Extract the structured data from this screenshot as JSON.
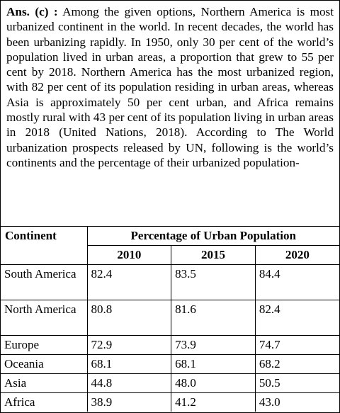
{
  "answer": {
    "label": "Ans. (c) :",
    "text": "Among the given options, Northern America is most urbanized continent in the world. In recent decades, the world has been urbanizing rapidly. In 1950, only 30 per cent of the world’s population lived in urban areas, a proportion that grew to 55 per cent by 2018. Northern America has the most urbanized region, with 82 per cent of its population residing in urban areas, whereas Asia is approximately 50 per cent urban, and Africa remains mostly rural with 43 per cent of its population living in urban areas in 2018 (United Nations, 2018). According to The World urbanization prospects released by UN, following is the world’s continents and the percentage of their urbanized population-"
  },
  "table": {
    "header": [
      "Continent",
      "Percentage of Urban Population"
    ],
    "years": [
      "2010",
      "2015",
      "2020"
    ],
    "rows": [
      [
        "South America",
        "82.4",
        "83.5",
        "84.4"
      ],
      [
        "North America",
        "80.8",
        "81.6",
        "82.4"
      ],
      [
        "Europe",
        "72.9",
        "73.9",
        "74.7"
      ],
      [
        "Oceania",
        "68.1",
        "68.1",
        "68.2"
      ],
      [
        "Asia",
        "44.8",
        "48.0",
        "50.5"
      ],
      [
        "Africa",
        "38.9",
        "41.2",
        "43.0"
      ]
    ]
  }
}
